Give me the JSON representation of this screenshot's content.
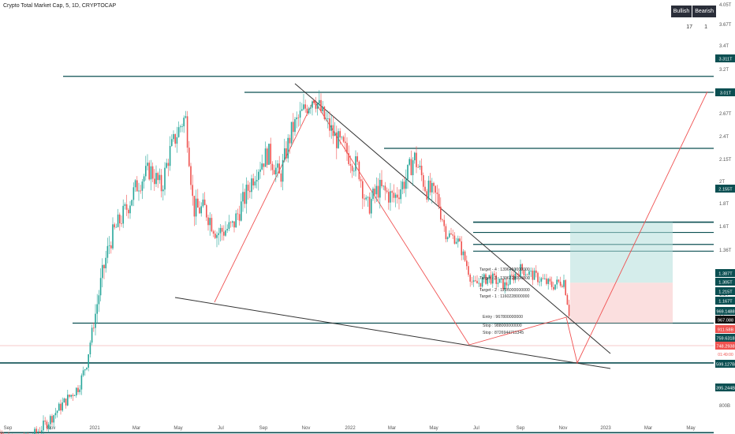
{
  "header": {
    "title": "Crypto Total Market Cap, 5, 1D, CRYPTOCAP"
  },
  "badge": {
    "bullish_label": "Bullish",
    "bearish_label": "Bearish",
    "bullish_count": "17",
    "bearish_count": "1"
  },
  "colors": {
    "candle_up": "#26a69a",
    "candle_down": "#ef5350",
    "level_line": "#0b4f52",
    "trend_black": "#333333",
    "trend_red": "#f05252",
    "target_zone": "#b2dfdb",
    "stop_zone": "#f8c9c9"
  },
  "chart_data": {
    "type": "candlestick",
    "title": "Crypto Total Market Cap, 5, 1D, CRYPTOCAP",
    "x_tick_labels": [
      "Sep",
      "Nov",
      "2021",
      "Mar",
      "May",
      "Jul",
      "Sep",
      "Nov",
      "2022",
      "Mar",
      "May",
      "Jul",
      "Sep",
      "Nov",
      "2023",
      "Mar",
      "May"
    ],
    "y_tick_labels": [
      "4.05T",
      "3.67T",
      "3.4T",
      "3.2T",
      "2.87T",
      "2.67T",
      "2.4T",
      "2.15T",
      "2T",
      "1.8T",
      "1.6T",
      "1.36T",
      "1.2T",
      "1.1T",
      "1T",
      "900B",
      "800B"
    ],
    "y_scale": "log",
    "price_levels": [
      {
        "label": "3.311T",
        "value": 3311
      },
      {
        "label": "3.01T",
        "value": 3010
      },
      {
        "label": "2.155T",
        "value": 2155
      },
      {
        "label": "1.387T",
        "value": 1387
      },
      {
        "label": "1.305T",
        "value": 1305
      },
      {
        "label": "1.215T",
        "value": 1215
      },
      {
        "label": "1.167T",
        "value": 1167
      },
      {
        "label": "969.1488",
        "value": 969.15
      },
      {
        "label": "967.088",
        "value": 967.09
      },
      {
        "label": "911.58B",
        "value": 911.58
      },
      {
        "label": "759.6318",
        "value": 759.63
      },
      {
        "label": "748.2938",
        "value": 748.29
      },
      {
        "label": "599.127B",
        "value": 599.13
      },
      {
        "label": "395.244B",
        "value": 395.24
      }
    ],
    "targets": [
      "Target - 4 : 1396450000000",
      "Target - 3 : 1306228000000",
      "Target - 2 : 1216000000000",
      "Target - 1 : 1160228000000",
      "Entry : 967800000000",
      "Stop : 988000000000",
      "Stop : 8726944711345"
    ],
    "price_scale_small_label": "01:49:00",
    "series": [
      {
        "name": "Crypto Total Market Cap",
        "values": [
          [
            0,
            395
          ],
          [
            20,
            370
          ],
          [
            40,
            385
          ],
          [
            60,
            420
          ],
          [
            80,
            470
          ],
          [
            100,
            520
          ],
          [
            110,
            600
          ],
          [
            120,
            780
          ],
          [
            140,
            1250
          ],
          [
            160,
            1500
          ],
          [
            175,
            1750
          ],
          [
            190,
            1900
          ],
          [
            205,
            1700
          ],
          [
            215,
            2100
          ],
          [
            230,
            2500
          ],
          [
            235,
            2600
          ],
          [
            245,
            1500
          ],
          [
            260,
            1500
          ],
          [
            275,
            1300
          ],
          [
            295,
            1350
          ],
          [
            310,
            1600
          ],
          [
            325,
            1900
          ],
          [
            340,
            2100
          ],
          [
            355,
            1800
          ],
          [
            370,
            2400
          ],
          [
            385,
            2700
          ],
          [
            398,
            2950
          ],
          [
            410,
            2600
          ],
          [
            425,
            2300
          ],
          [
            440,
            2100
          ],
          [
            455,
            1900
          ],
          [
            465,
            1500
          ],
          [
            480,
            1700
          ],
          [
            500,
            1600
          ],
          [
            515,
            1800
          ],
          [
            525,
            2050
          ],
          [
            540,
            1700
          ],
          [
            555,
            1600
          ],
          [
            565,
            1300
          ],
          [
            580,
            1250
          ],
          [
            590,
            1100
          ],
          [
            600,
            950
          ],
          [
            620,
            1000
          ],
          [
            640,
            950
          ],
          [
            660,
            1050
          ],
          [
            680,
            1000
          ],
          [
            700,
            950
          ],
          [
            715,
            980
          ],
          [
            722,
            800
          ]
        ]
      }
    ]
  }
}
